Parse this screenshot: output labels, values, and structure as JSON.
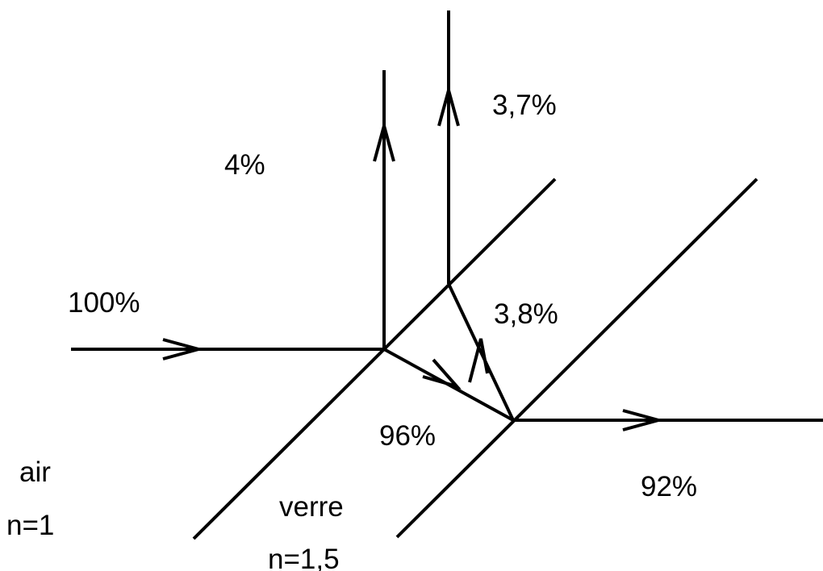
{
  "media": {
    "air": {
      "name": "air",
      "index": "n=1"
    },
    "glass": {
      "name": "verre",
      "index": "n=1,5"
    }
  },
  "intensities": {
    "incident": "100%",
    "first_reflection": "4%",
    "transmitted_into_glass": "96%",
    "internal_reflection": "3,8%",
    "second_exit_reflection": "3,7%",
    "final_transmitted": "92%"
  },
  "colors": {
    "lines": "#000000",
    "background": "#ffffff"
  }
}
